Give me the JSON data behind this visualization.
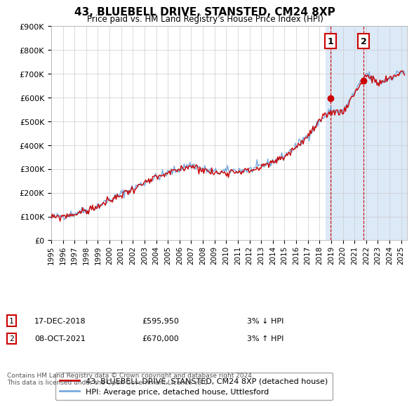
{
  "title": "43, BLUEBELL DRIVE, STANSTED, CM24 8XP",
  "subtitle": "Price paid vs. HM Land Registry's House Price Index (HPI)",
  "ylabel_ticks": [
    "£0",
    "£100K",
    "£200K",
    "£300K",
    "£400K",
    "£500K",
    "£600K",
    "£700K",
    "£800K",
    "£900K"
  ],
  "ylim": [
    0,
    900000
  ],
  "xlim_start": 1995.0,
  "xlim_end": 2025.5,
  "legend_line1": "43, BLUEBELL DRIVE, STANSTED, CM24 8XP (detached house)",
  "legend_line2": "HPI: Average price, detached house, Uttlesford",
  "point1_label": "1",
  "point1_date": "17-DEC-2018",
  "point1_price": "£595,950",
  "point1_hpi": "3% ↓ HPI",
  "point1_year": 2018.96,
  "point1_value": 595950,
  "point2_label": "2",
  "point2_date": "08-OCT-2021",
  "point2_price": "£670,000",
  "point2_hpi": "3% ↑ HPI",
  "point2_year": 2021.77,
  "point2_value": 670000,
  "highlight_color": "#dce9f7",
  "highlight_x1": 2018.5,
  "highlight_x2": 2025.5,
  "line_color_red": "#cc0000",
  "line_color_blue": "#7aaadd",
  "footnote": "Contains HM Land Registry data © Crown copyright and database right 2024.\nThis data is licensed under the Open Government Licence v3.0.",
  "background_color": "#ffffff",
  "grid_color": "#cccccc"
}
